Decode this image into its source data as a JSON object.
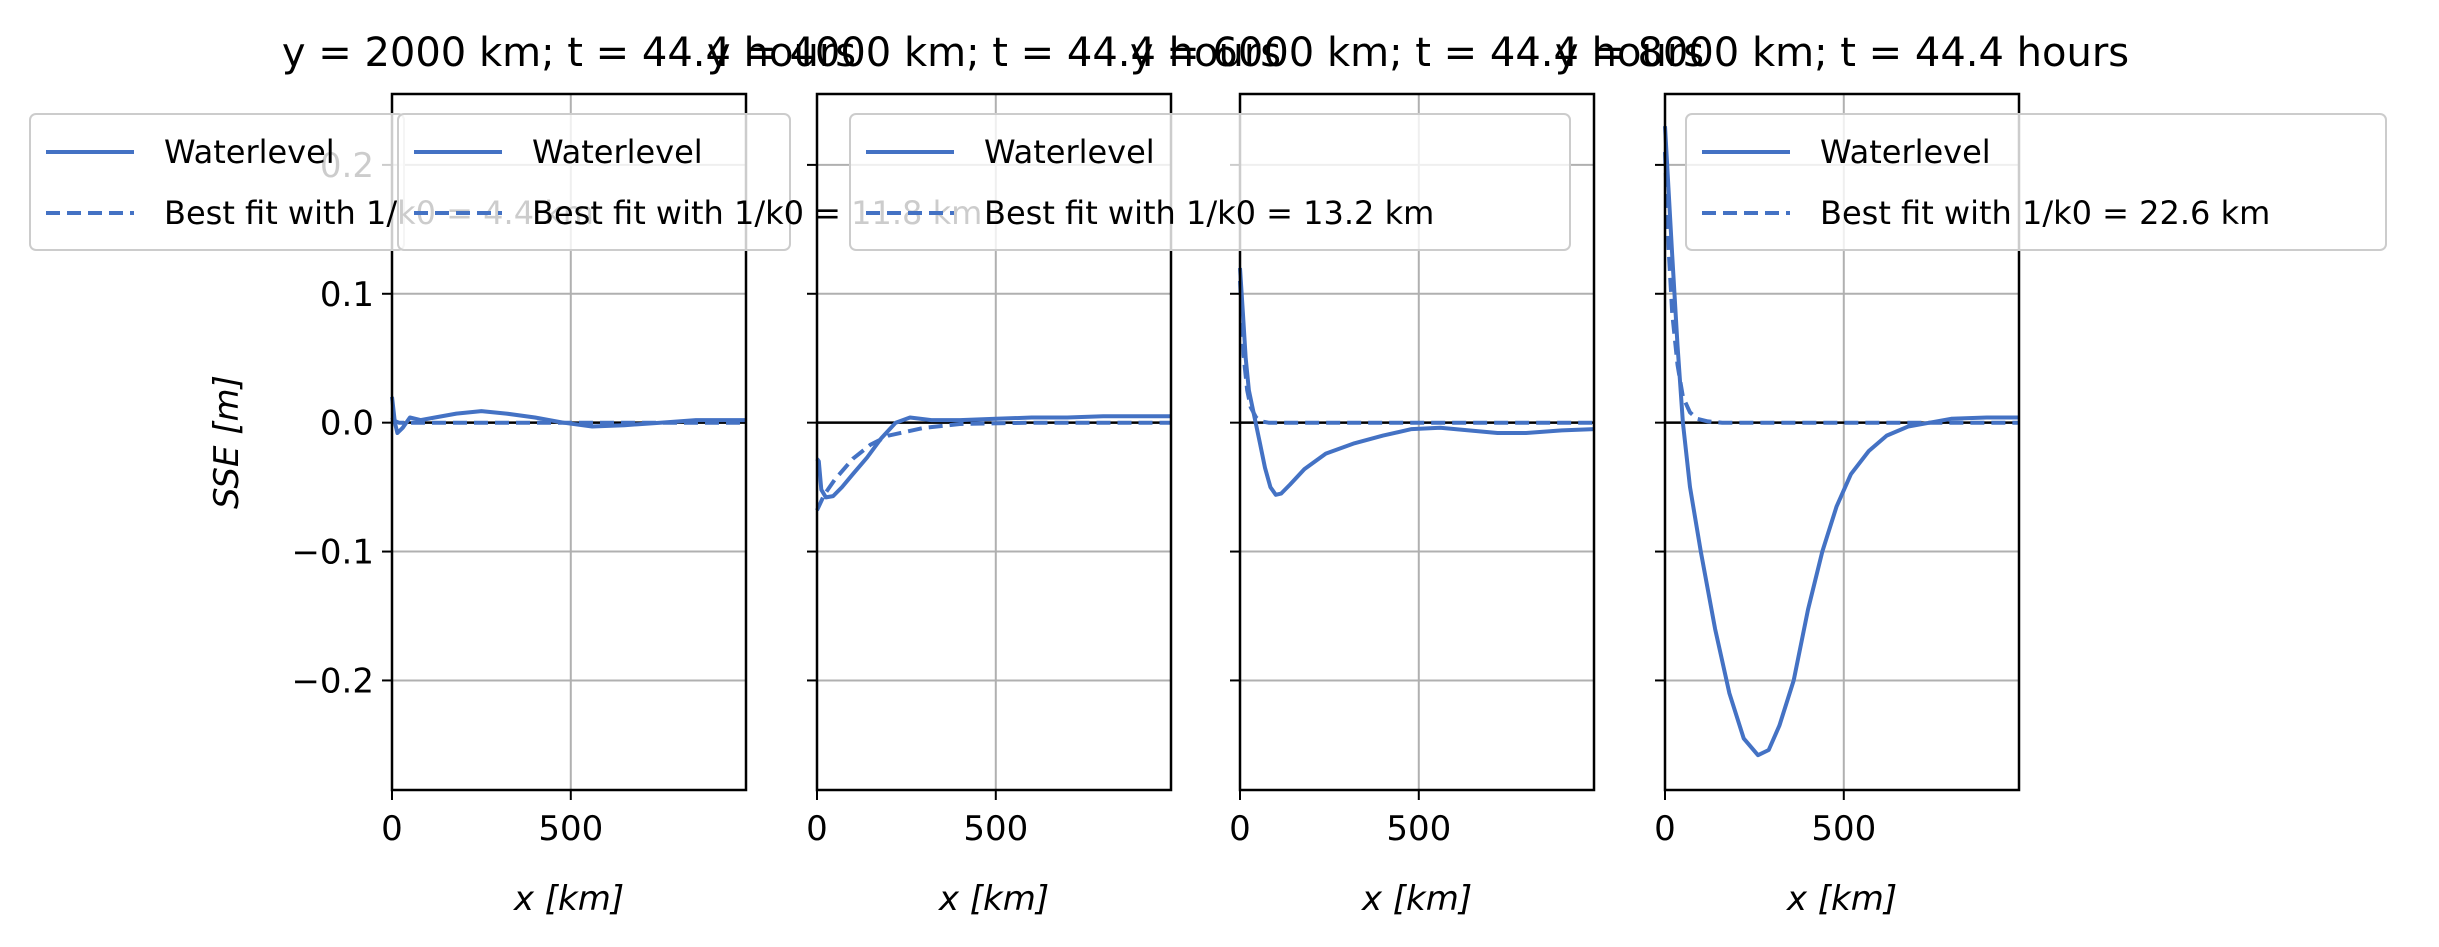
{
  "chart_data": [
    {
      "type": "line",
      "title": "y = 2000 km; t = 44.4 hours",
      "xlabel": "x [km]",
      "ylabel": "SSE [m]",
      "xlim": [
        0,
        990
      ],
      "ylim": [
        -0.285,
        0.255
      ],
      "xticks": [
        0,
        500
      ],
      "yticks": [
        -0.2,
        -0.1,
        0.0,
        0.1,
        0.2
      ],
      "grid": true,
      "legend_position": "top",
      "series": [
        {
          "name": "Waterlevel",
          "style": "solid",
          "points": [
            [
              0,
              0.02
            ],
            [
              8,
              0.0
            ],
            [
              15,
              -0.008
            ],
            [
              30,
              -0.004
            ],
            [
              50,
              0.004
            ],
            [
              80,
              0.002
            ],
            [
              120,
              0.004
            ],
            [
              180,
              0.007
            ],
            [
              250,
              0.009
            ],
            [
              320,
              0.007
            ],
            [
              400,
              0.004
            ],
            [
              480,
              0.0
            ],
            [
              560,
              -0.003
            ],
            [
              650,
              -0.002
            ],
            [
              750,
              0.0
            ],
            [
              850,
              0.002
            ],
            [
              990,
              0.002
            ]
          ]
        },
        {
          "name": "Best fit with 1/k0 = 4.4 km",
          "style": "dashed",
          "points": [
            [
              0,
              0.004
            ],
            [
              5,
              0.002
            ],
            [
              10,
              0.001
            ],
            [
              20,
              0.0
            ],
            [
              990,
              0.0
            ]
          ]
        }
      ]
    },
    {
      "type": "line",
      "title": "y = 4000 km; t = 44.4 hours",
      "xlabel": "x [km]",
      "ylabel": "",
      "xlim": [
        0,
        990
      ],
      "ylim": [
        -0.285,
        0.255
      ],
      "xticks": [
        0,
        500
      ],
      "yticks": [
        -0.2,
        -0.1,
        0.0,
        0.1,
        0.2
      ],
      "grid": true,
      "legend_position": "top",
      "series": [
        {
          "name": "Waterlevel",
          "style": "solid",
          "points": [
            [
              0,
              -0.028
            ],
            [
              5,
              -0.03
            ],
            [
              12,
              -0.052
            ],
            [
              25,
              -0.058
            ],
            [
              45,
              -0.057
            ],
            [
              70,
              -0.05
            ],
            [
              100,
              -0.04
            ],
            [
              140,
              -0.027
            ],
            [
              180,
              -0.012
            ],
            [
              220,
              0.0
            ],
            [
              260,
              0.004
            ],
            [
              320,
              0.002
            ],
            [
              400,
              0.002
            ],
            [
              500,
              0.003
            ],
            [
              600,
              0.004
            ],
            [
              700,
              0.004
            ],
            [
              800,
              0.005
            ],
            [
              900,
              0.005
            ],
            [
              990,
              0.005
            ]
          ]
        },
        {
          "name": "Best fit with 1/k0 = 11.8 km",
          "style": "dashed",
          "points": [
            [
              0,
              -0.068
            ],
            [
              20,
              -0.056
            ],
            [
              50,
              -0.044
            ],
            [
              100,
              -0.028
            ],
            [
              150,
              -0.017
            ],
            [
              200,
              -0.01
            ],
            [
              300,
              -0.004
            ],
            [
              400,
              -0.001
            ],
            [
              600,
              0.0
            ],
            [
              990,
              0.0
            ]
          ]
        }
      ]
    },
    {
      "type": "line",
      "title": "y = 6000 km; t = 44.4 hours",
      "xlabel": "x [km]",
      "ylabel": "",
      "xlim": [
        0,
        990
      ],
      "ylim": [
        -0.285,
        0.255
      ],
      "xticks": [
        0,
        500
      ],
      "yticks": [
        -0.2,
        -0.1,
        0.0,
        0.1,
        0.2
      ],
      "grid": true,
      "legend_position": "top",
      "series": [
        {
          "name": "Waterlevel",
          "style": "solid",
          "points": [
            [
              0,
              0.12
            ],
            [
              8,
              0.085
            ],
            [
              16,
              0.05
            ],
            [
              25,
              0.025
            ],
            [
              40,
              0.005
            ],
            [
              55,
              -0.015
            ],
            [
              70,
              -0.035
            ],
            [
              85,
              -0.05
            ],
            [
              100,
              -0.056
            ],
            [
              115,
              -0.055
            ],
            [
              140,
              -0.048
            ],
            [
              180,
              -0.036
            ],
            [
              240,
              -0.024
            ],
            [
              320,
              -0.016
            ],
            [
              400,
              -0.01
            ],
            [
              480,
              -0.005
            ],
            [
              560,
              -0.004
            ],
            [
              640,
              -0.006
            ],
            [
              720,
              -0.008
            ],
            [
              800,
              -0.008
            ],
            [
              900,
              -0.006
            ],
            [
              990,
              -0.005
            ]
          ]
        },
        {
          "name": "Best fit with 1/k0 = 13.2 km",
          "style": "dashed",
          "points": [
            [
              0,
              0.11
            ],
            [
              10,
              0.052
            ],
            [
              20,
              0.025
            ],
            [
              30,
              0.012
            ],
            [
              45,
              0.004
            ],
            [
              60,
              0.001
            ],
            [
              80,
              0.0
            ],
            [
              990,
              0.0
            ]
          ]
        }
      ]
    },
    {
      "type": "line",
      "title": "y = 8000 km; t = 44.4 hours",
      "xlabel": "x [km]",
      "ylabel": "",
      "xlim": [
        0,
        990
      ],
      "ylim": [
        -0.285,
        0.255
      ],
      "xticks": [
        0,
        500
      ],
      "yticks": [
        -0.2,
        -0.1,
        0.0,
        0.1,
        0.2
      ],
      "grid": true,
      "legend_position": "top",
      "series": [
        {
          "name": "Waterlevel",
          "style": "solid",
          "points": [
            [
              0,
              0.23
            ],
            [
              10,
              0.18
            ],
            [
              20,
              0.13
            ],
            [
              35,
              0.06
            ],
            [
              50,
              0.0
            ],
            [
              70,
              -0.05
            ],
            [
              100,
              -0.1
            ],
            [
              140,
              -0.16
            ],
            [
              180,
              -0.21
            ],
            [
              220,
              -0.245
            ],
            [
              260,
              -0.258
            ],
            [
              290,
              -0.254
            ],
            [
              320,
              -0.235
            ],
            [
              360,
              -0.2
            ],
            [
              400,
              -0.145
            ],
            [
              440,
              -0.1
            ],
            [
              480,
              -0.065
            ],
            [
              520,
              -0.04
            ],
            [
              570,
              -0.022
            ],
            [
              620,
              -0.01
            ],
            [
              680,
              -0.003
            ],
            [
              740,
              0.0
            ],
            [
              800,
              0.003
            ],
            [
              900,
              0.004
            ],
            [
              990,
              0.004
            ]
          ]
        },
        {
          "name": "Best fit with 1/k0 = 22.6 km",
          "style": "dashed",
          "points": [
            [
              0,
              0.21
            ],
            [
              10,
              0.135
            ],
            [
              20,
              0.085
            ],
            [
              35,
              0.045
            ],
            [
              50,
              0.02
            ],
            [
              70,
              0.008
            ],
            [
              90,
              0.003
            ],
            [
              120,
              0.001
            ],
            [
              160,
              0.0
            ],
            [
              990,
              0.0
            ]
          ]
        }
      ]
    }
  ],
  "colors": {
    "line": "#4472c4",
    "grid": "#b0b0b0",
    "axis": "#000000",
    "zero_line": "#000000",
    "legend_border": "#cccccc"
  }
}
